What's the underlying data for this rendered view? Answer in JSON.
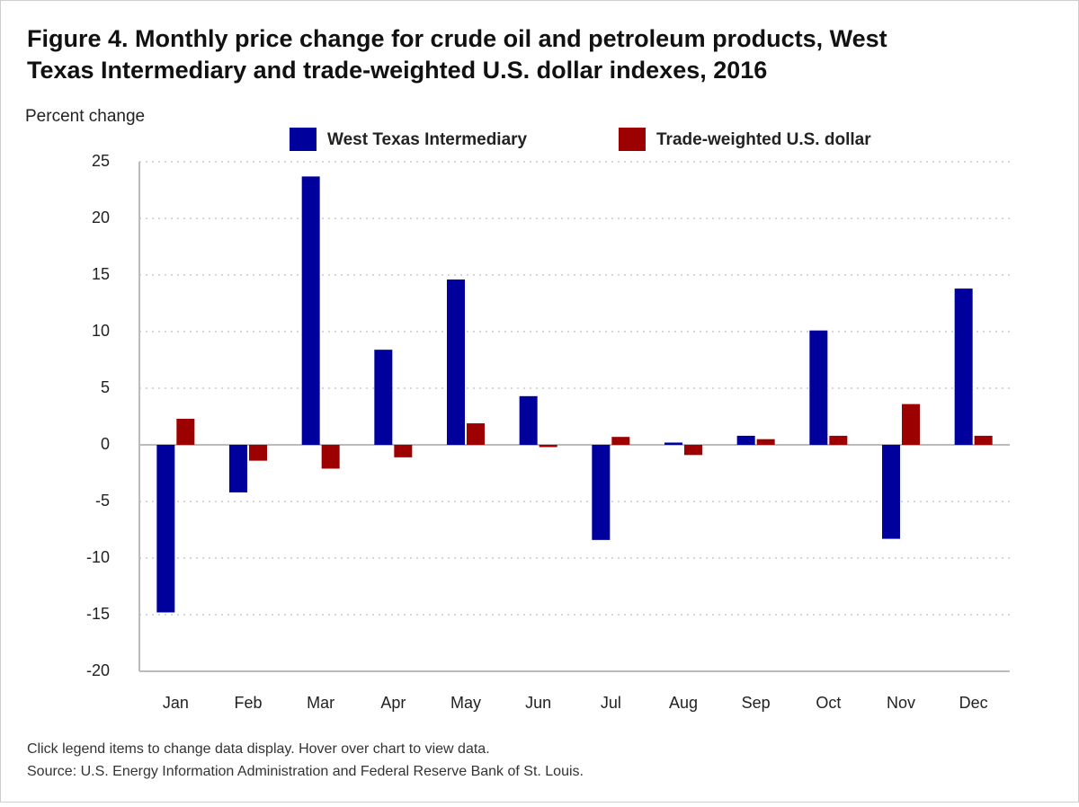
{
  "chart_data": {
    "type": "bar",
    "title": [
      "Figure 4. Monthly price change for crude oil and petroleum products, West",
      "Texas Intermediary and trade-weighted U.S. dollar indexes, 2016"
    ],
    "y_label": "Percent change",
    "categories": [
      "Jan",
      "Feb",
      "Mar",
      "Apr",
      "May",
      "Jun",
      "Jul",
      "Aug",
      "Sep",
      "Oct",
      "Nov",
      "Dec"
    ],
    "series": [
      {
        "name": "West Texas Intermediary",
        "color": "#00009c",
        "values": [
          -14.8,
          -4.2,
          23.7,
          8.4,
          14.6,
          4.3,
          -8.4,
          0.2,
          0.8,
          10.1,
          -8.3,
          13.8
        ]
      },
      {
        "name": "Trade-weighted U.S. dollar",
        "color": "#9c0000",
        "values": [
          2.3,
          -1.4,
          -2.1,
          -1.1,
          1.9,
          -0.2,
          0.7,
          -0.9,
          0.5,
          0.8,
          3.6,
          0.8
        ]
      }
    ],
    "ylim": [
      -20,
      25
    ],
    "yticks": [
      -20,
      -15,
      -10,
      -5,
      0,
      5,
      10,
      15,
      20,
      25
    ],
    "grid": true,
    "legend": "top",
    "notes": [
      "Click legend items to change data display. Hover over chart to view data.",
      "Source: U.S. Energy Information Administration and Federal Reserve Bank of St. Louis."
    ]
  }
}
